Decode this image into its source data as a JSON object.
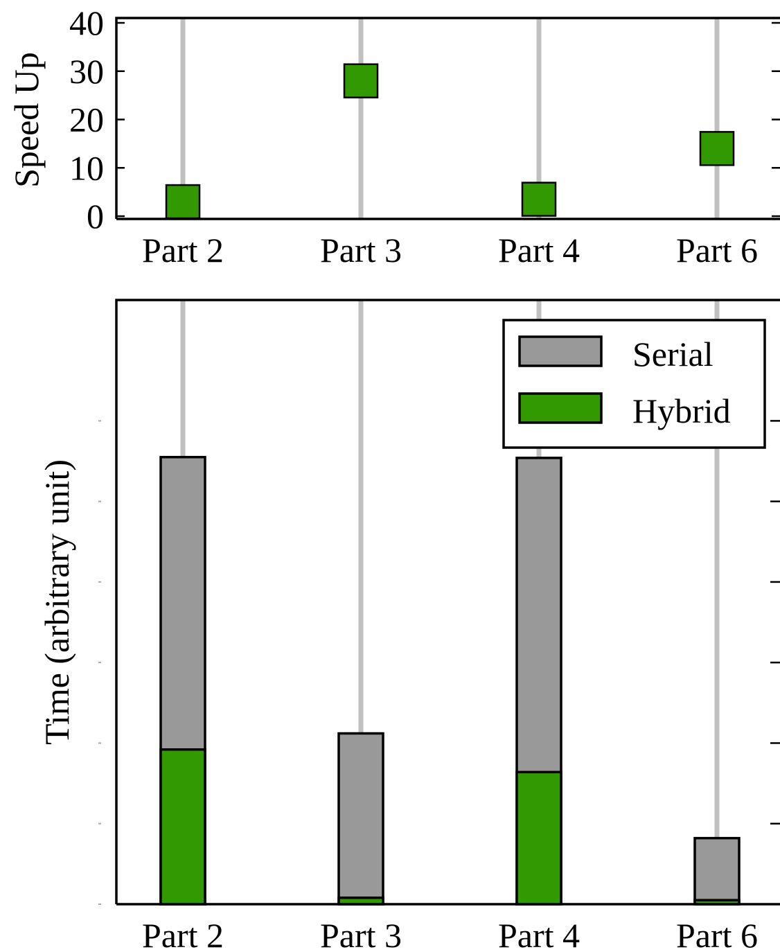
{
  "chart_data": [
    {
      "type": "scatter",
      "categories": [
        "Part 2",
        "Part 3",
        "Part 4",
        "Part 6"
      ],
      "series": [
        {
          "values": [
            3,
            28,
            3.5,
            14
          ],
          "color": "#339900"
        }
      ],
      "ylabel": "Speed Up",
      "ylim": [
        0,
        40
      ],
      "yticks": [
        "0",
        "10",
        "20",
        "30",
        "40"
      ],
      "grid": "vertical",
      "legend": null
    },
    {
      "type": "bar",
      "categories": [
        "Part 2",
        "Part 3",
        "Part 4",
        "Part 6"
      ],
      "series": [
        {
          "name": "Serial",
          "values": [
            5.55,
            2.12,
            5.54,
            0.82
          ],
          "color": "#999999"
        },
        {
          "name": "Hybrid",
          "values": [
            1.92,
            0.08,
            1.64,
            0.05
          ],
          "color": "#339900"
        }
      ],
      "ylabel": "Time (arbitrary unit)",
      "ylim": [
        0,
        7.5
      ],
      "grid": "vertical",
      "legend": "top-right"
    }
  ]
}
